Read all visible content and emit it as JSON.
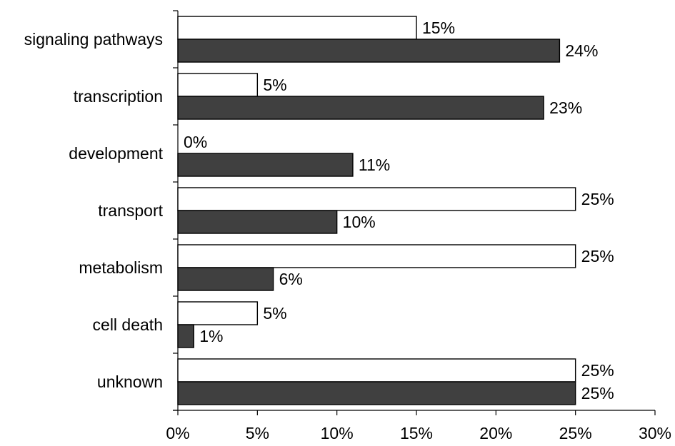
{
  "chart_data": {
    "type": "bar",
    "orientation": "horizontal",
    "categories": [
      "signaling pathways",
      "transcription",
      "development",
      "transport",
      "metabolism",
      "cell death",
      "unknown"
    ],
    "series": [
      {
        "values": [
          15,
          5,
          0,
          25,
          25,
          5,
          25
        ],
        "color": "#ffffff"
      },
      {
        "values": [
          24,
          23,
          11,
          10,
          6,
          1,
          25
        ],
        "color": "#404040"
      }
    ],
    "data_labels": [
      [
        "15%",
        "5%",
        "0%",
        "25%",
        "25%",
        "5%",
        "25%"
      ],
      [
        "24%",
        "23%",
        "11%",
        "10%",
        "6%",
        "1%",
        "25%"
      ]
    ],
    "xlim": [
      0,
      30
    ],
    "x_ticks": [
      0,
      5,
      10,
      15,
      20,
      25,
      30
    ],
    "x_tick_labels": [
      "0%",
      "5%",
      "10%",
      "15%",
      "20%",
      "25%",
      "30%"
    ],
    "grid": false,
    "legend": "none",
    "title": "",
    "xlabel": "",
    "ylabel": ""
  }
}
